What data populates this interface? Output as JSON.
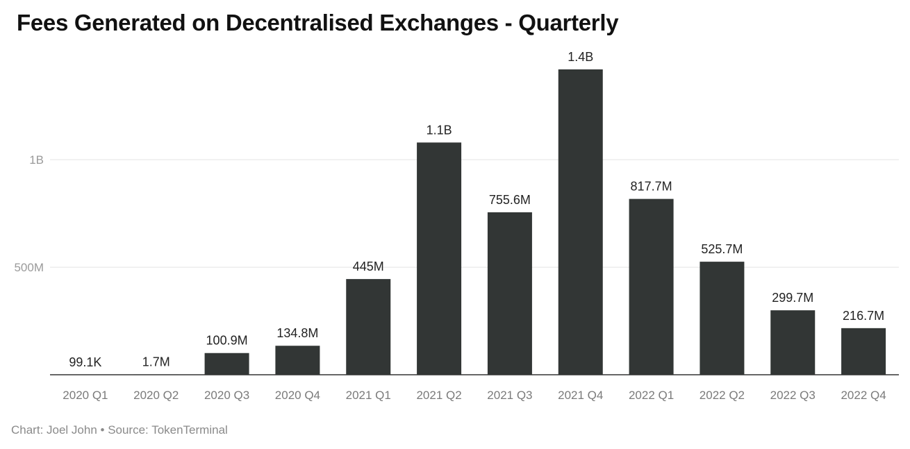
{
  "chart_data": {
    "type": "bar",
    "title": "Fees Generated on Decentralised Exchanges - Quarterly",
    "xlabel": "",
    "ylabel": "",
    "ylim": [
      0,
      1.42
    ],
    "unit": "billions USD",
    "categories": [
      "2020 Q1",
      "2020 Q2",
      "2020 Q3",
      "2020 Q4",
      "2021 Q1",
      "2021 Q2",
      "2021 Q3",
      "2021 Q4",
      "2022 Q1",
      "2022 Q2",
      "2022 Q3",
      "2022 Q4"
    ],
    "values": [
      9.91e-05,
      0.0017,
      0.1009,
      0.1348,
      0.445,
      1.08,
      0.7556,
      1.42,
      0.8177,
      0.5257,
      0.2997,
      0.2167
    ],
    "data_labels": [
      "99.1K",
      "1.7M",
      "100.9M",
      "134.8M",
      "445M",
      "1.1B",
      "755.6M",
      "1.4B",
      "817.7M",
      "525.7M",
      "299.7M",
      "216.7M"
    ],
    "y_ticks": [
      {
        "value": 0.5,
        "label": "500M"
      },
      {
        "value": 1.0,
        "label": "1B"
      }
    ],
    "grid": true,
    "bar_color": "#323635"
  },
  "footer": "Chart: Joel John • Source: TokenTerminal"
}
